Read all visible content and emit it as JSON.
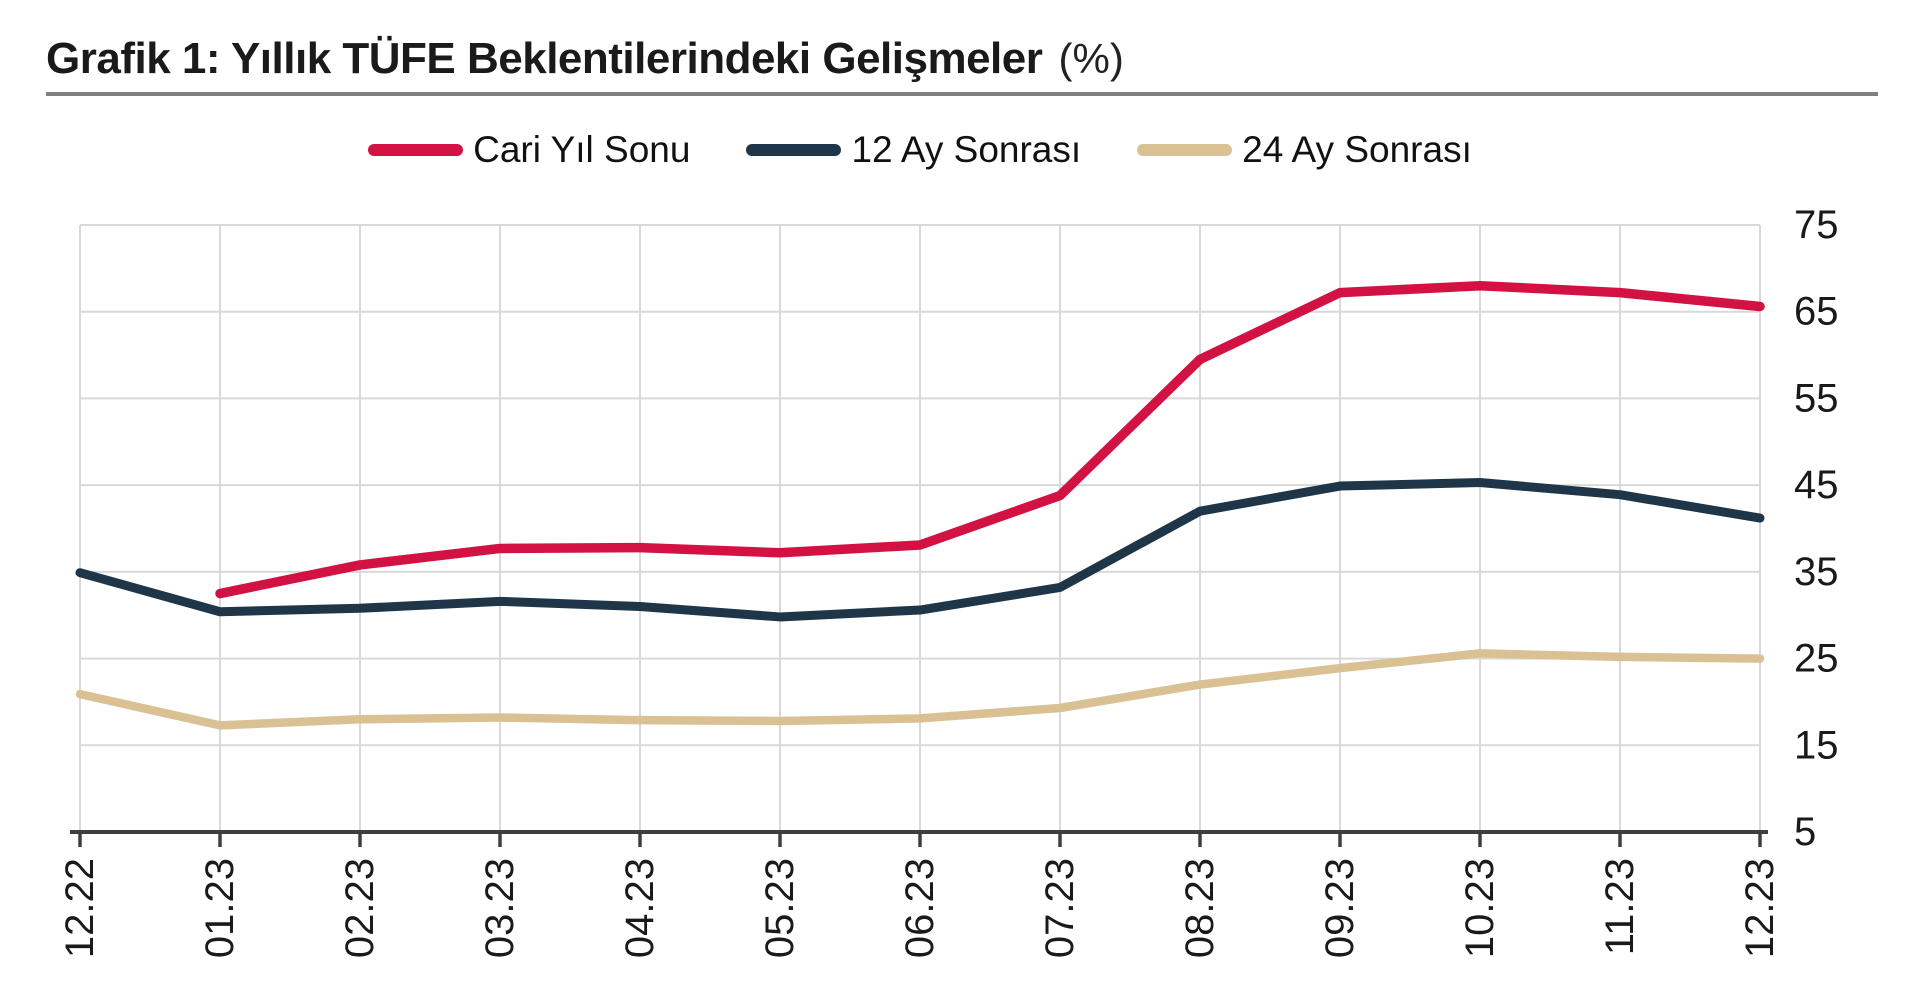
{
  "title": {
    "text": "Grafik 1: Yıllık TÜFE Beklentilerindeki Gelişmeler",
    "unit": "(%)"
  },
  "chart_data": {
    "type": "line",
    "title": "Grafik 1: Yıllık TÜFE Beklentilerindeki Gelişmeler (%)",
    "xlabel": "",
    "ylabel": "",
    "categories": [
      "12.22",
      "01.23",
      "02.23",
      "03.23",
      "04.23",
      "05.23",
      "06.23",
      "07.23",
      "08.23",
      "09.23",
      "10.23",
      "11.23",
      "12.23"
    ],
    "series": [
      {
        "name": "Cari Yıl Sonu",
        "color": "#d11243",
        "values": [
          null,
          32.5,
          35.8,
          37.7,
          37.8,
          37.2,
          38.1,
          43.8,
          59.5,
          67.2,
          68.0,
          67.2,
          65.6
        ]
      },
      {
        "name": "12 Ay Sonrası",
        "color": "#1f3648",
        "values": [
          34.9,
          30.4,
          30.8,
          31.6,
          31.0,
          29.8,
          30.6,
          33.2,
          42.0,
          44.9,
          45.3,
          43.9,
          41.2
        ]
      },
      {
        "name": "24 Ay Sonrası",
        "color": "#d9c194",
        "values": [
          20.9,
          17.3,
          18.0,
          18.2,
          17.9,
          17.8,
          18.1,
          19.3,
          22.0,
          23.9,
          25.6,
          25.2,
          25.0
        ]
      }
    ],
    "ylim": [
      5,
      75
    ],
    "yticks": [
      5,
      15,
      25,
      35,
      45,
      55,
      65,
      75
    ],
    "y_axis_side": "right",
    "x_tick_rotation_deg": -90,
    "grid": true,
    "legend_position": "top"
  },
  "colors": {
    "gridline": "#d9d9d9",
    "axis": "#3f3f3f",
    "tick_text": "#1a1a1a",
    "title_underline": "#7f7f7f",
    "background": "#ffffff"
  }
}
